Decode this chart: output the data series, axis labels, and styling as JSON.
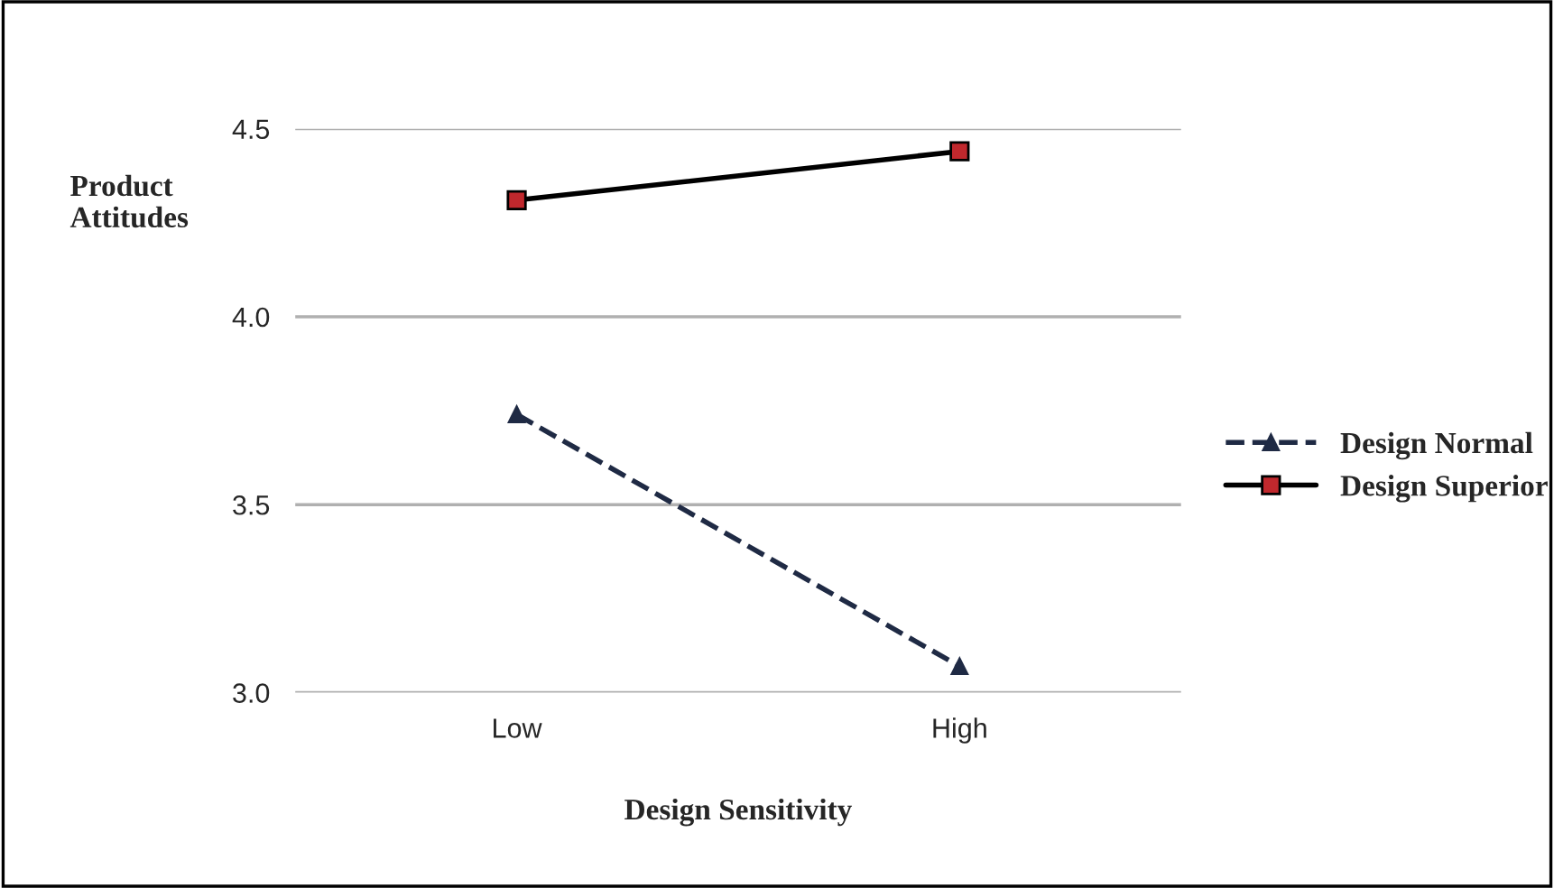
{
  "chart_data": {
    "type": "line",
    "xlabel": "Design Sensitivity",
    "ylabel": "Product\nAttitudes",
    "categories": [
      "Low",
      "High"
    ],
    "series": [
      {
        "name": "Design Normal",
        "color": "#1f2a44",
        "values": [
          3.74,
          3.07
        ],
        "marker": "triangle",
        "line_style": "dashed"
      },
      {
        "name": "Design Superior",
        "color": "#000000",
        "values": [
          4.31,
          4.44
        ],
        "marker": "square",
        "line_style": "solid"
      }
    ],
    "ylim": [
      3.0,
      4.5
    ],
    "yticks": [
      {
        "value": 3.0,
        "label": "3.0"
      },
      {
        "value": 3.5,
        "label": "3.5"
      },
      {
        "value": 4.0,
        "label": "4.0"
      },
      {
        "value": 4.5,
        "label": "4.5"
      }
    ],
    "grid": "y",
    "legend": "right"
  }
}
